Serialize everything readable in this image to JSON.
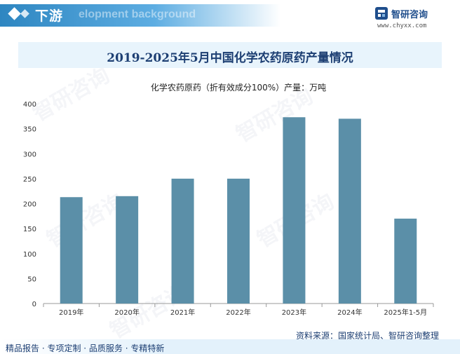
{
  "header": {
    "title": "下游",
    "subtitle_ghost": "elopment background"
  },
  "brand": {
    "name": "智研咨询",
    "url": "www.chyxx.com",
    "watermark_text": "智研咨询"
  },
  "colors": {
    "bar": "#5b8fa8",
    "title": "#1d3f73",
    "header_blue": "#2e86c1",
    "band": "#e8f4fc"
  },
  "chart_data": {
    "type": "bar",
    "title": "2019-2025年5月中国化学农药原药产量情况",
    "subtitle": "化学农药原药（折有效成分100%）产量：万吨",
    "xlabel": "",
    "ylabel": "",
    "categories": [
      "2019年",
      "2020年",
      "2021年",
      "2022年",
      "2023年",
      "2024年",
      "2025年1-5月"
    ],
    "series": [
      {
        "values": [
          213,
          215,
          250,
          250,
          373,
          370,
          170
        ]
      }
    ],
    "ylim": [
      0,
      400
    ],
    "yticks": [
      0,
      50,
      100,
      150,
      200,
      250,
      300,
      350,
      400
    ],
    "grid": false,
    "legend": "none"
  },
  "source": "资料来源：国家统计局、智研咨询整理",
  "footer": "精品报告 · 专项定制 · 品质服务 · 专精特新"
}
